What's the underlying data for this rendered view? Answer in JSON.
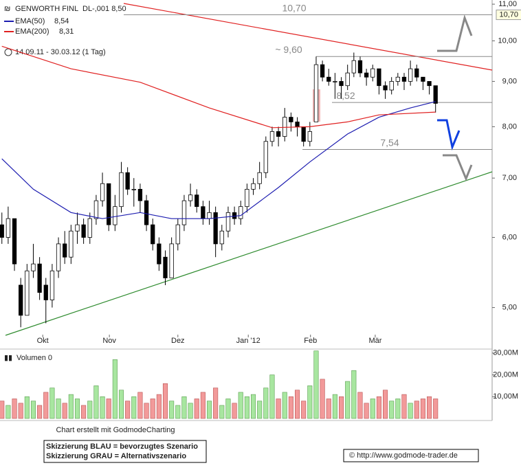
{
  "chart_data": {
    "type": "candlestick",
    "title": "GENWORTH FINL",
    "subtitle": "DL-,001 8,50",
    "period": "14.09.11 - 30.03.12 (1 Tag)",
    "log_scale": true,
    "grid": false,
    "ylim": [
      4.66,
      11.12
    ],
    "yticks": [
      {
        "value": 11,
        "label": "11,00"
      },
      {
        "value": 10,
        "label": "10,00"
      },
      {
        "value": 9,
        "label": "9,00"
      },
      {
        "value": 8,
        "label": "8,00"
      },
      {
        "value": 7,
        "label": "7,00"
      },
      {
        "value": 6,
        "label": "6,00"
      },
      {
        "value": 5,
        "label": "5,00"
      }
    ],
    "xlim": [
      -0.3,
      78
    ],
    "xticks": [
      {
        "value": 6.5,
        "label": "Okt"
      },
      {
        "value": 17.1,
        "label": "Nov"
      },
      {
        "value": 28,
        "label": "Dez"
      },
      {
        "value": 39.2,
        "label": "Jan '12"
      },
      {
        "value": 49.1,
        "label": "Feb"
      },
      {
        "value": 59.4,
        "label": "Mär"
      }
    ],
    "ohlc": [
      [
        6.2,
        6.4,
        5.9,
        6.0
      ],
      [
        6.0,
        6.5,
        5.9,
        6.3
      ],
      [
        6.3,
        6.3,
        5.5,
        5.6
      ],
      [
        5.3,
        5.4,
        4.75,
        4.9
      ],
      [
        4.9,
        5.6,
        4.9,
        5.5
      ],
      [
        5.5,
        5.9,
        5.4,
        5.6
      ],
      [
        5.6,
        5.7,
        5.1,
        5.2
      ],
      [
        5.3,
        5.4,
        4.8,
        5.1
      ],
      [
        5.1,
        5.6,
        5.0,
        5.5
      ],
      [
        5.5,
        6.0,
        5.4,
        5.9
      ],
      [
        5.9,
        6.1,
        5.6,
        5.7
      ],
      [
        5.7,
        6.2,
        5.6,
        6.1
      ],
      [
        6.1,
        6.4,
        5.9,
        6.2
      ],
      [
        6.2,
        6.3,
        5.9,
        6.0
      ],
      [
        6.0,
        6.4,
        5.9,
        6.3
      ],
      [
        6.3,
        6.7,
        6.2,
        6.6
      ],
      [
        6.6,
        7.1,
        6.5,
        6.9
      ],
      [
        6.9,
        6.9,
        6.1,
        6.2
      ],
      [
        6.2,
        6.7,
        6.1,
        6.5
      ],
      [
        6.5,
        7.3,
        6.4,
        7.1
      ],
      [
        7.1,
        7.2,
        6.7,
        6.8
      ],
      [
        6.8,
        7.0,
        6.5,
        6.8
      ],
      [
        6.8,
        6.9,
        6.4,
        6.6
      ],
      [
        6.6,
        6.7,
        6.1,
        6.2
      ],
      [
        6.2,
        6.3,
        5.8,
        5.9
      ],
      [
        5.9,
        6.0,
        5.5,
        5.6
      ],
      [
        5.7,
        5.8,
        5.3,
        5.4
      ],
      [
        5.4,
        6.0,
        5.4,
        5.9
      ],
      [
        5.9,
        6.3,
        5.8,
        6.2
      ],
      [
        6.2,
        6.7,
        6.1,
        6.6
      ],
      [
        6.6,
        6.9,
        6.5,
        6.7
      ],
      [
        6.7,
        6.8,
        6.4,
        6.5
      ],
      [
        6.5,
        6.6,
        6.2,
        6.3
      ],
      [
        6.3,
        6.6,
        6.2,
        6.4
      ],
      [
        6.4,
        6.5,
        5.7,
        5.9
      ],
      [
        5.9,
        6.2,
        5.8,
        6.1
      ],
      [
        6.1,
        6.5,
        6.0,
        6.4
      ],
      [
        6.4,
        6.5,
        6.2,
        6.3
      ],
      [
        6.3,
        6.6,
        6.2,
        6.5
      ],
      [
        6.5,
        6.9,
        6.4,
        6.8
      ],
      [
        6.8,
        7.0,
        6.7,
        6.9
      ],
      [
        6.9,
        7.3,
        6.8,
        7.1
      ],
      [
        7.1,
        7.8,
        7.0,
        7.7
      ],
      [
        7.7,
        8.0,
        7.6,
        7.9
      ],
      [
        7.9,
        8.0,
        7.6,
        7.8
      ],
      [
        7.8,
        8.4,
        7.7,
        8.2
      ],
      [
        8.2,
        8.3,
        7.9,
        8.1
      ],
      [
        8.1,
        8.2,
        7.8,
        8.0
      ],
      [
        8.0,
        8.0,
        7.6,
        7.7
      ],
      [
        7.7,
        8.1,
        7.6,
        7.9
      ],
      [
        8.1,
        9.6,
        8.1,
        9.4
      ],
      [
        9.4,
        9.5,
        9.0,
        9.1
      ],
      [
        9.1,
        9.3,
        8.9,
        9.0
      ],
      [
        9.0,
        9.2,
        8.6,
        9.0
      ],
      [
        9.0,
        9.1,
        8.6,
        8.9
      ],
      [
        8.9,
        9.4,
        8.8,
        9.2
      ],
      [
        9.2,
        9.7,
        9.1,
        9.5
      ],
      [
        9.5,
        9.6,
        9.1,
        9.2
      ],
      [
        9.2,
        9.3,
        8.9,
        9.1
      ],
      [
        9.1,
        9.4,
        9.0,
        9.3
      ],
      [
        9.3,
        9.3,
        8.7,
        8.9
      ],
      [
        8.9,
        9.0,
        8.6,
        8.8
      ],
      [
        8.8,
        9.1,
        8.7,
        9.0
      ],
      [
        9.0,
        9.2,
        8.9,
        9.1
      ],
      [
        9.1,
        9.2,
        8.8,
        9.0
      ],
      [
        9.0,
        9.5,
        8.9,
        9.3
      ],
      [
        9.3,
        9.4,
        9.0,
        9.1
      ],
      [
        9.1,
        9.1,
        8.8,
        9.0
      ],
      [
        9.0,
        9.0,
        8.7,
        8.9
      ],
      [
        8.9,
        8.9,
        8.3,
        8.5
      ]
    ],
    "series": [
      {
        "name": "EMA(50)",
        "value_label": "8,54",
        "color": "#1c1cb0",
        "x": [
          0,
          5,
          11,
          16,
          22,
          27,
          33,
          38,
          44,
          49,
          55,
          60,
          65,
          69
        ],
        "values": [
          7.36,
          6.8,
          6.4,
          6.3,
          6.4,
          6.3,
          6.3,
          6.35,
          6.83,
          7.3,
          7.85,
          8.2,
          8.4,
          8.54
        ]
      },
      {
        "name": "EMA(200)",
        "value_label": "8,31",
        "color": "#e02020",
        "x": [
          0,
          11,
          22,
          33,
          43,
          49,
          55,
          60,
          69
        ],
        "values": [
          9.86,
          9.3,
          8.98,
          8.4,
          7.98,
          8.0,
          8.1,
          8.25,
          8.31
        ]
      }
    ],
    "levels": [
      {
        "value": 10.7,
        "label": "10,70"
      },
      {
        "value": 9.6,
        "label": "~ 9,60"
      },
      {
        "value": 8.52,
        "label": "8,52"
      },
      {
        "value": 7.54,
        "label": "7,54"
      }
    ],
    "current_marker": {
      "value": 10.7,
      "label": "10,70"
    },
    "volume": {
      "label": "Volumen 0",
      "ylim": [
        0,
        31.2
      ],
      "yticks": [
        {
          "value": 30,
          "label": "30,00M"
        },
        {
          "value": 20,
          "label": "20,00M"
        },
        {
          "value": 10,
          "label": "10,00M"
        }
      ],
      "values": [
        8,
        6,
        9,
        7,
        10,
        8,
        6,
        12,
        14,
        9,
        7,
        11,
        9,
        6,
        8,
        15,
        10,
        9,
        27,
        13,
        8,
        10,
        12,
        7,
        9,
        11,
        16,
        8,
        6,
        10,
        7,
        9,
        12,
        8,
        14,
        6,
        9,
        7,
        12,
        10,
        11,
        8,
        14,
        20,
        9,
        12,
        10,
        13,
        8,
        15,
        31,
        18,
        9,
        11,
        10,
        17,
        22,
        12,
        7,
        9,
        10,
        13,
        8,
        9,
        11,
        7,
        8,
        9,
        10,
        9
      ]
    },
    "credit": "Chart erstellt mit GodmodeCharting",
    "notes": [
      "Skizzierung BLAU = bevorzugtes Szenario",
      "Skizzierung GRAU = Alternativszenario"
    ],
    "source": "© http://www.godmode-trader.de"
  }
}
